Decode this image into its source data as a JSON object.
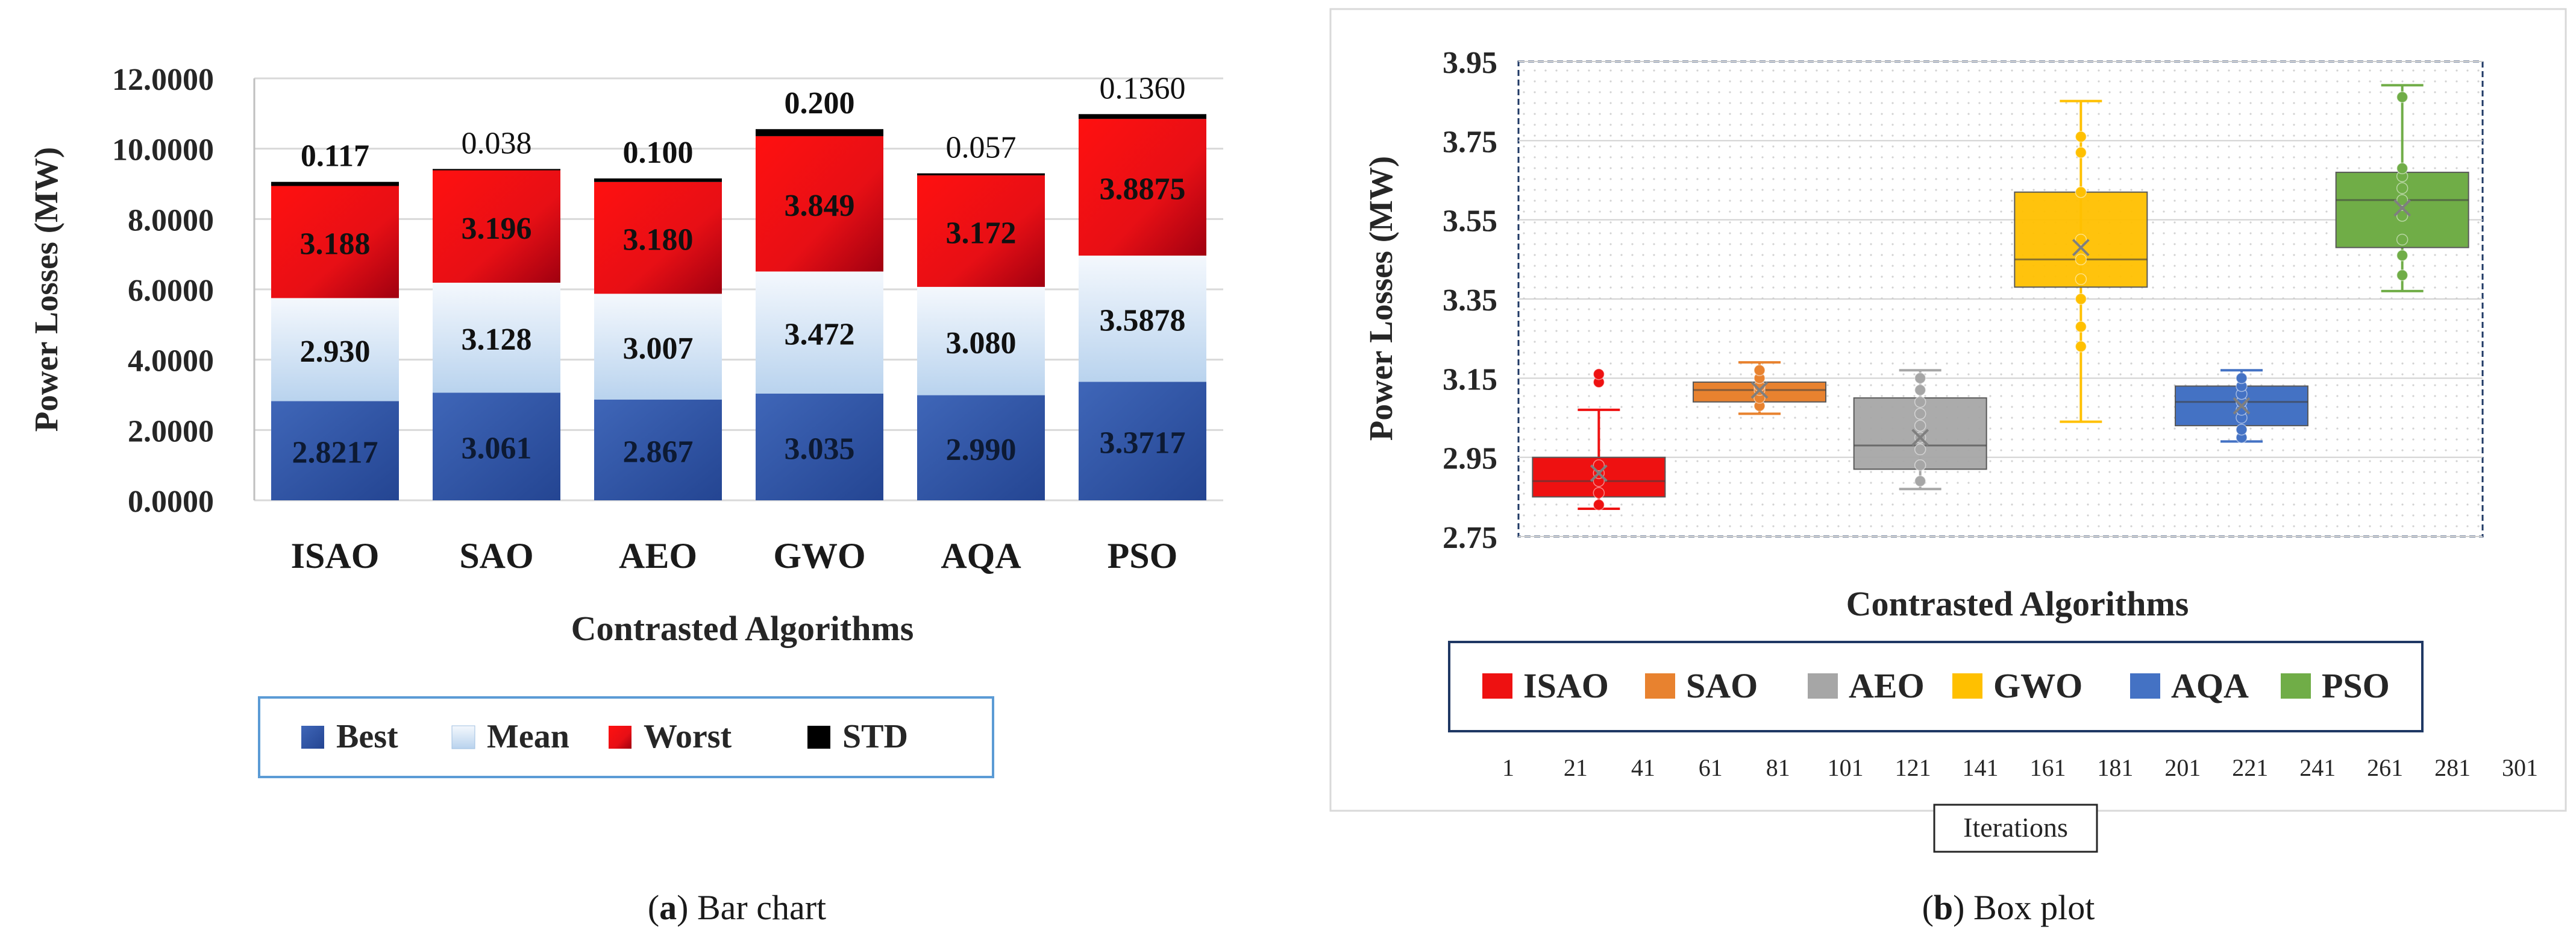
{
  "chart_data": [
    {
      "type": "bar",
      "stacked": true,
      "title": "",
      "caption_letter": "a",
      "caption_text": " Bar chart",
      "xlabel": "Contrasted Algorithms",
      "ylabel": "Power Losses (MW)",
      "ylim": [
        0,
        12
      ],
      "yticks": [
        "0.0000",
        "2.0000",
        "4.0000",
        "6.0000",
        "8.0000",
        "10.0000",
        "12.0000"
      ],
      "categories": [
        "ISAO",
        "SAO",
        "AEO",
        "GWO",
        "AQA",
        "PSO"
      ],
      "series": [
        {
          "name": "Best",
          "values": [
            2.8217,
            3.061,
            2.867,
            3.035,
            2.99,
            3.3717
          ],
          "labels": [
            "2.8217",
            "3.061",
            "2.867",
            "3.035",
            "2.990",
            "3.3717"
          ],
          "color": "#2f55a4"
        },
        {
          "name": "Mean",
          "values": [
            2.93,
            3.128,
            3.007,
            3.472,
            3.08,
            3.5878
          ],
          "labels": [
            "2.930",
            "3.128",
            "3.007",
            "3.472",
            "3.080",
            "3.5878"
          ],
          "color": "#d6e6f6"
        },
        {
          "name": "Worst",
          "values": [
            3.188,
            3.196,
            3.18,
            3.849,
            3.172,
            3.8875
          ],
          "labels": [
            "3.188",
            "3.196",
            "3.180",
            "3.849",
            "3.172",
            "3.8875"
          ],
          "color": "#e8101a"
        },
        {
          "name": "STD",
          "values": [
            0.117,
            0.038,
            0.1,
            0.2,
            0.057,
            0.136
          ],
          "labels": [
            "0.117",
            "0.038",
            "0.100",
            "0.200",
            "0.057",
            "0.1360"
          ],
          "color": "#000000"
        }
      ],
      "legend": [
        "Best",
        "Mean",
        "Worst",
        "STD"
      ],
      "legend_position": "bottom"
    },
    {
      "type": "box",
      "title": "",
      "caption_letter": "b",
      "caption_text": " Box plot",
      "xlabel": "Contrasted Algorithms",
      "ylabel": "Power Losses (MW)",
      "ylim": [
        2.75,
        3.95
      ],
      "yticks": [
        "2.75",
        "2.95",
        "3.15",
        "3.35",
        "3.55",
        "3.75",
        "3.95"
      ],
      "secondary_xlabel": "Iterations",
      "secondary_xlim": [
        1,
        301
      ],
      "secondary_xticks": [
        "1",
        "21",
        "41",
        "61",
        "81",
        "101",
        "121",
        "141",
        "161",
        "181",
        "201",
        "221",
        "241",
        "261",
        "281",
        "301"
      ],
      "legend_position": "bottom",
      "series": [
        {
          "name": "ISAO",
          "color": "#ee1111",
          "whisker_low": 2.82,
          "q1": 2.85,
          "median": 2.89,
          "q3": 2.95,
          "whisker_high": 3.07,
          "mean": 2.91,
          "points": [
            2.83,
            2.86,
            2.89,
            2.91,
            2.93,
            3.14,
            3.16
          ]
        },
        {
          "name": "SAO",
          "color": "#e8822f",
          "whisker_low": 3.06,
          "q1": 3.09,
          "median": 3.12,
          "q3": 3.14,
          "whisker_high": 3.19,
          "mean": 3.12,
          "points": [
            3.08,
            3.1,
            3.12,
            3.13,
            3.15,
            3.17
          ]
        },
        {
          "name": "AEO",
          "color": "#a6a6a6",
          "whisker_low": 2.87,
          "q1": 2.92,
          "median": 2.98,
          "q3": 3.1,
          "whisker_high": 3.17,
          "mean": 3.0,
          "points": [
            2.89,
            2.93,
            2.97,
            3.0,
            3.03,
            3.06,
            3.09,
            3.12,
            3.15
          ]
        },
        {
          "name": "GWO",
          "color": "#ffc000",
          "whisker_low": 3.04,
          "q1": 3.38,
          "median": 3.45,
          "q3": 3.62,
          "whisker_high": 3.85,
          "mean": 3.48,
          "points": [
            3.23,
            3.28,
            3.35,
            3.4,
            3.45,
            3.5,
            3.62,
            3.72,
            3.76
          ]
        },
        {
          "name": "AQA",
          "color": "#4472c4",
          "whisker_low": 2.99,
          "q1": 3.03,
          "median": 3.09,
          "q3": 3.13,
          "whisker_high": 3.17,
          "mean": 3.08,
          "points": [
            3.0,
            3.02,
            3.05,
            3.07,
            3.09,
            3.11,
            3.13,
            3.15
          ]
        },
        {
          "name": "PSO",
          "color": "#70ad47",
          "whisker_low": 3.37,
          "q1": 3.48,
          "median": 3.6,
          "q3": 3.67,
          "whisker_high": 3.89,
          "mean": 3.58,
          "points": [
            3.41,
            3.46,
            3.5,
            3.56,
            3.6,
            3.63,
            3.66,
            3.68,
            3.86
          ]
        }
      ],
      "legend": [
        "ISAO",
        "SAO",
        "AEO",
        "GWO",
        "AQA",
        "PSO"
      ]
    }
  ]
}
